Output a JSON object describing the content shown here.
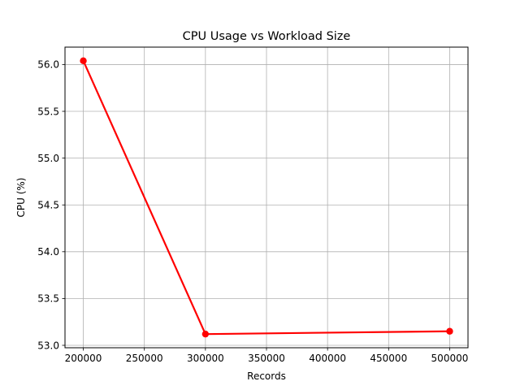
{
  "chart_data": {
    "type": "line",
    "title": "CPU Usage vs Workload Size",
    "xlabel": "Records",
    "ylabel": "CPU (%)",
    "x": [
      200000,
      300000,
      500000
    ],
    "series": [
      {
        "values": [
          56.04,
          53.12,
          53.15
        ],
        "color": "#ff0000",
        "marker": "circle"
      }
    ],
    "xlim": [
      185000,
      515000
    ],
    "ylim": [
      52.974,
      56.186
    ],
    "xticks": [
      200000,
      250000,
      300000,
      350000,
      400000,
      450000,
      500000
    ],
    "xtick_labels": [
      "200000",
      "250000",
      "300000",
      "350000",
      "400000",
      "450000",
      "500000"
    ],
    "yticks": [
      53.0,
      53.5,
      54.0,
      54.5,
      55.0,
      55.5,
      56.0
    ],
    "ytick_labels": [
      "53.0",
      "53.5",
      "54.0",
      "54.5",
      "55.0",
      "55.5",
      "56.0"
    ],
    "grid": true,
    "colors": {
      "grid": "#b0b0b0",
      "axes": "#000000",
      "line": "#ff0000"
    }
  }
}
